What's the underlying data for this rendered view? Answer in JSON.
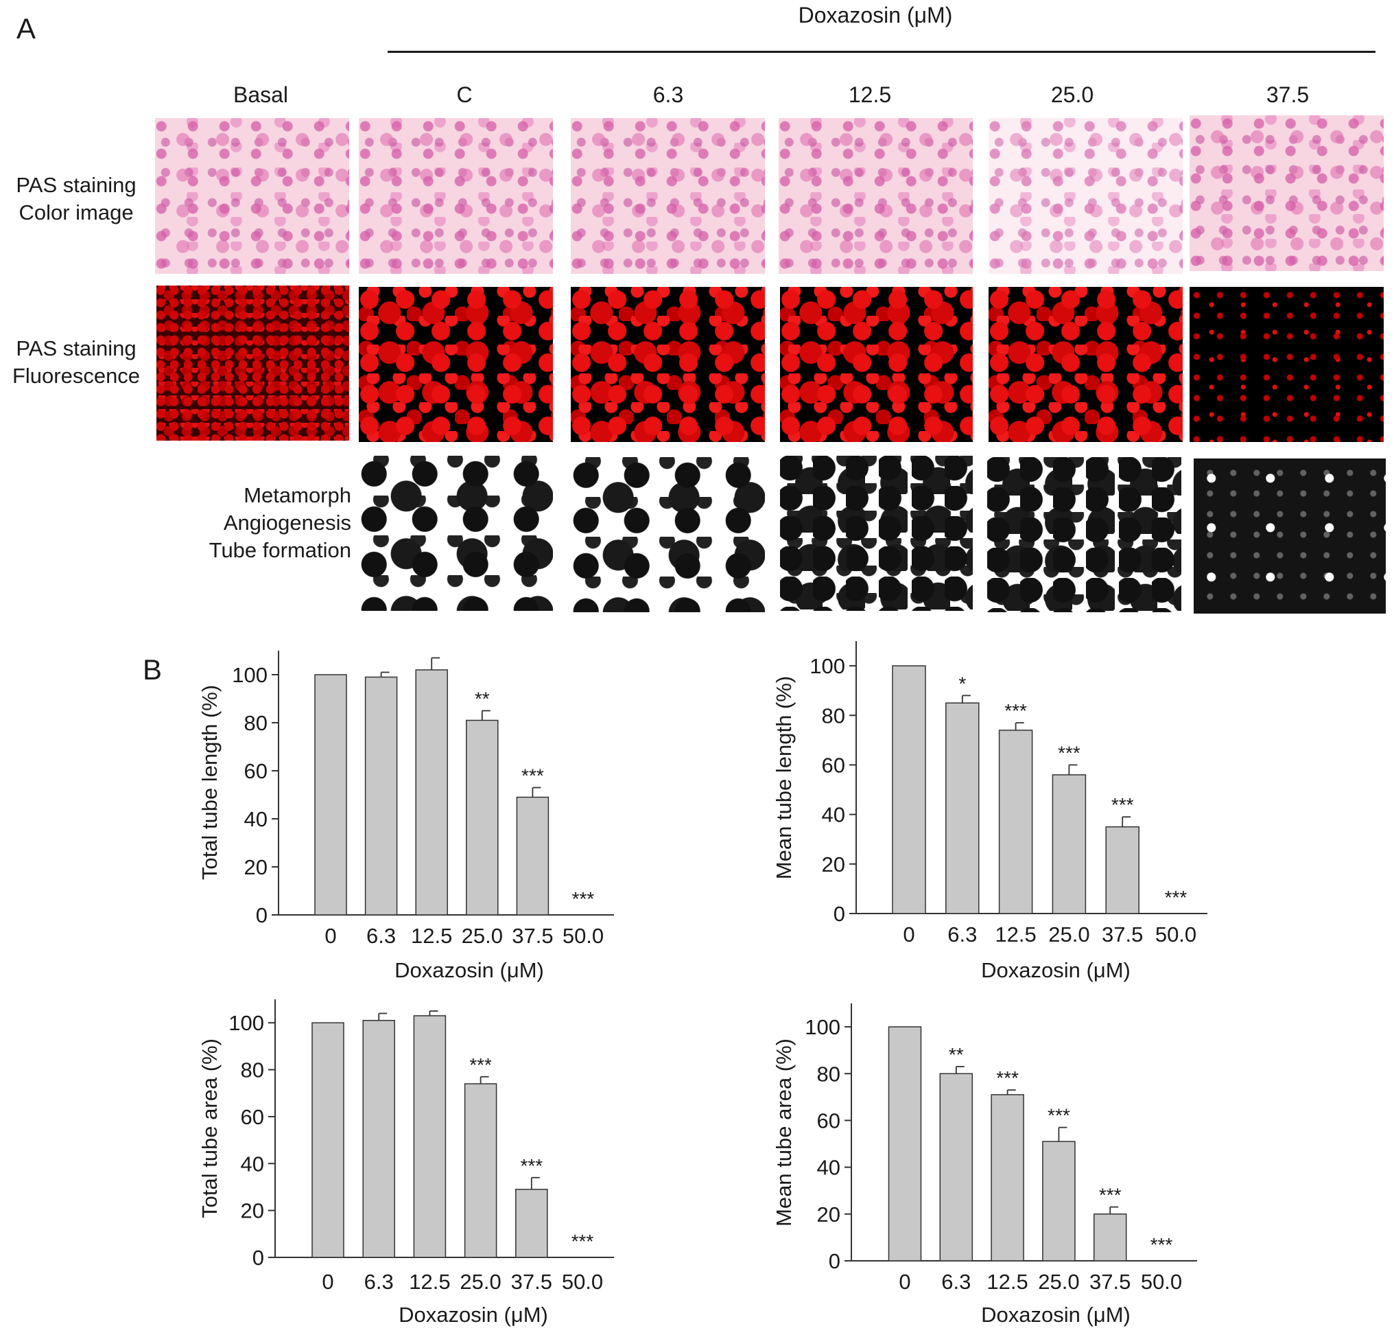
{
  "panel_a": {
    "letter": "A",
    "treatment_header": "Doxazosin (μM)",
    "columns": [
      "Basal",
      "C",
      "6.3",
      "12.5",
      "25.0",
      "37.5"
    ],
    "rows": [
      [
        "PAS staining",
        "Color image"
      ],
      [
        "PAS staining",
        "Fluorescence"
      ],
      [
        "Metamorph",
        "Angiogenesis",
        "Tube formation"
      ]
    ]
  },
  "panel_b": {
    "letter": "B"
  },
  "chart_data": [
    {
      "type": "bar",
      "categories": [
        "0",
        "6.3",
        "12.5",
        "25.0",
        "37.5",
        "50.0"
      ],
      "values": [
        100,
        99,
        102,
        81,
        49,
        0
      ],
      "errors": [
        0,
        2,
        5,
        4,
        4,
        0
      ],
      "significance": [
        "",
        "",
        "",
        "**",
        "***",
        "***"
      ],
      "xlabel": "Doxazosin (μM)",
      "ylabel": "Total tube length (%)",
      "ylim": [
        0,
        110
      ],
      "yticks": [
        "0",
        "20",
        "40",
        "60",
        "80",
        "100"
      ],
      "grid": false,
      "bar_color": "#c8c8c8"
    },
    {
      "type": "bar",
      "categories": [
        "0",
        "6.3",
        "12.5",
        "25.0",
        "37.5",
        "50.0"
      ],
      "values": [
        100,
        85,
        74,
        56,
        35,
        0
      ],
      "errors": [
        0,
        3,
        3,
        4,
        4,
        0
      ],
      "significance": [
        "",
        "*",
        "***",
        "***",
        "***",
        "***"
      ],
      "xlabel": "Doxazosin (μM)",
      "ylabel": "Mean tube length (%)",
      "ylim": [
        0,
        110
      ],
      "yticks": [
        "0",
        "20",
        "40",
        "60",
        "80",
        "100"
      ],
      "grid": false,
      "bar_color": "#c8c8c8"
    },
    {
      "type": "bar",
      "categories": [
        "0",
        "6.3",
        "12.5",
        "25.0",
        "37.5",
        "50.0"
      ],
      "values": [
        100,
        101,
        103,
        74,
        29,
        0
      ],
      "errors": [
        0,
        3,
        2,
        3,
        5,
        0
      ],
      "significance": [
        "",
        "",
        "",
        "***",
        "***",
        "***"
      ],
      "xlabel": "Doxazosin (μM)",
      "ylabel": "Total tube area (%)",
      "ylim": [
        0,
        110
      ],
      "yticks": [
        "0",
        "20",
        "40",
        "60",
        "80",
        "100"
      ],
      "grid": false,
      "bar_color": "#c8c8c8"
    },
    {
      "type": "bar",
      "categories": [
        "0",
        "6.3",
        "12.5",
        "25.0",
        "37.5",
        "50.0"
      ],
      "values": [
        100,
        80,
        71,
        51,
        20,
        0
      ],
      "errors": [
        0,
        3,
        2,
        6,
        3,
        0
      ],
      "significance": [
        "",
        "**",
        "***",
        "***",
        "***",
        "***"
      ],
      "xlabel": "Doxazosin (μM)",
      "ylabel": "Mean tube area (%)",
      "ylim": [
        0,
        110
      ],
      "yticks": [
        "0",
        "20",
        "40",
        "60",
        "80",
        "100"
      ],
      "grid": false,
      "bar_color": "#c8c8c8"
    }
  ]
}
